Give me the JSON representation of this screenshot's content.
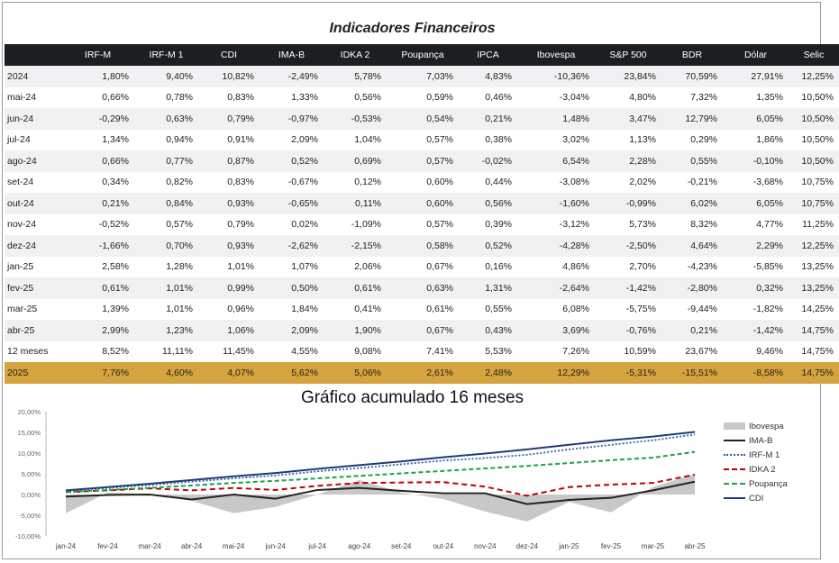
{
  "table": {
    "title": "Indicadores Financeiros",
    "columns": [
      "",
      "IRF-M",
      "IRF-M 1",
      "CDI",
      "IMA-B",
      "IDKA 2",
      "Poupança",
      "IPCA",
      "Ibovespa",
      "S&P 500",
      "BDR",
      "Dólar",
      "Selic"
    ],
    "rows": [
      [
        "2024",
        "1,80%",
        "9,40%",
        "10,82%",
        "-2,49%",
        "5,78%",
        "7,03%",
        "4,83%",
        "-10,36%",
        "23,84%",
        "70,59%",
        "27,91%",
        "12,25%"
      ],
      [
        "mai-24",
        "0,66%",
        "0,78%",
        "0,83%",
        "1,33%",
        "0,56%",
        "0,59%",
        "0,46%",
        "-3,04%",
        "4,80%",
        "7,32%",
        "1,35%",
        "10,50%"
      ],
      [
        "jun-24",
        "-0,29%",
        "0,63%",
        "0,79%",
        "-0,97%",
        "-0,53%",
        "0,54%",
        "0,21%",
        "1,48%",
        "3,47%",
        "12,79%",
        "6,05%",
        "10,50%"
      ],
      [
        "jul-24",
        "1,34%",
        "0,94%",
        "0,91%",
        "2,09%",
        "1,04%",
        "0,57%",
        "0,38%",
        "3,02%",
        "1,13%",
        "0,29%",
        "1,86%",
        "10,50%"
      ],
      [
        "ago-24",
        "0,66%",
        "0,77%",
        "0,87%",
        "0,52%",
        "0,69%",
        "0,57%",
        "-0,02%",
        "6,54%",
        "2,28%",
        "0,55%",
        "-0,10%",
        "10,50%"
      ],
      [
        "set-24",
        "0,34%",
        "0,82%",
        "0,83%",
        "-0,67%",
        "0,12%",
        "0,60%",
        "0,44%",
        "-3,08%",
        "2,02%",
        "-0,21%",
        "-3,68%",
        "10,75%"
      ],
      [
        "out-24",
        "0,21%",
        "0,84%",
        "0,93%",
        "-0,65%",
        "0,11%",
        "0,60%",
        "0,56%",
        "-1,60%",
        "-0,99%",
        "6,02%",
        "6,05%",
        "10,75%"
      ],
      [
        "nov-24",
        "-0,52%",
        "0,57%",
        "0,79%",
        "0,02%",
        "-1,09%",
        "0,57%",
        "0,39%",
        "-3,12%",
        "5,73%",
        "8,32%",
        "4,77%",
        "11,25%"
      ],
      [
        "dez-24",
        "-1,66%",
        "0,70%",
        "0,93%",
        "-2,62%",
        "-2,15%",
        "0,58%",
        "0,52%",
        "-4,28%",
        "-2,50%",
        "4,64%",
        "2,29%",
        "12,25%"
      ],
      [
        "jan-25",
        "2,58%",
        "1,28%",
        "1,01%",
        "1,07%",
        "2,06%",
        "0,67%",
        "0,16%",
        "4,86%",
        "2,70%",
        "-4,23%",
        "-5,85%",
        "13,25%"
      ],
      [
        "fev-25",
        "0,61%",
        "1,01%",
        "0,99%",
        "0,50%",
        "0,61%",
        "0,63%",
        "1,31%",
        "-2,64%",
        "-1,42%",
        "-2,80%",
        "0,32%",
        "13,25%"
      ],
      [
        "mar-25",
        "1,39%",
        "1,01%",
        "0,96%",
        "1,84%",
        "0,41%",
        "0,61%",
        "0,55%",
        "6,08%",
        "-5,75%",
        "-9,44%",
        "-1,82%",
        "14,25%"
      ],
      [
        "abr-25",
        "2,99%",
        "1,23%",
        "1,06%",
        "2,09%",
        "1,90%",
        "0,67%",
        "0,43%",
        "3,69%",
        "-0,76%",
        "0,21%",
        "-1,42%",
        "14,75%"
      ],
      [
        "12 meses",
        "8,52%",
        "11,11%",
        "11,45%",
        "4,55%",
        "9,08%",
        "7,41%",
        "5,53%",
        "7,26%",
        "10,59%",
        "23,67%",
        "9,46%",
        "14,75%"
      ]
    ],
    "total_row": [
      "2025",
      "7,76%",
      "4,60%",
      "4,07%",
      "5,62%",
      "5,06%",
      "2,61%",
      "2,48%",
      "12,29%",
      "-5,31%",
      "-15,51%",
      "-8,58%",
      "14,75%"
    ],
    "total_color": "#d6a43f",
    "header_color": "#1c1f22"
  },
  "chart_data": {
    "type": "line",
    "title": "Gráfico acumulado 16 meses",
    "categories": [
      "jan-24",
      "fev-24",
      "mar-24",
      "abr-24",
      "mai-24",
      "jun-24",
      "jul-24",
      "ago-24",
      "set-24",
      "out-24",
      "nov-24",
      "dez-24",
      "jan-25",
      "fev-25",
      "mar-25",
      "abr-25"
    ],
    "ylim": [
      -10,
      20
    ],
    "yticks": [
      "20,00%",
      "15,00%",
      "10,00%",
      "5,00%",
      "0,00%",
      "-5,00%",
      "-10,00%"
    ],
    "legend_position": "right",
    "series": [
      {
        "name": "Ibovespa",
        "style": "area",
        "color": "#c8c8c8",
        "values": [
          -4.5,
          0.5,
          0.2,
          -1.5,
          -4.5,
          -3.0,
          0.0,
          3.5,
          0.5,
          -1.1,
          -4.1,
          -6.5,
          -1.8,
          -4.3,
          1.8,
          5.0
        ]
      },
      {
        "name": "IMA-B",
        "style": "line",
        "color": "#222222",
        "values": [
          -0.5,
          -0.1,
          0.0,
          -1.2,
          0.0,
          -1.0,
          1.1,
          1.6,
          0.9,
          0.3,
          0.3,
          -2.3,
          -1.3,
          -0.8,
          1.0,
          3.1
        ]
      },
      {
        "name": "IRF-M 1",
        "style": "dot",
        "color": "#3a5fa8",
        "values": [
          0.9,
          1.6,
          2.3,
          3.1,
          3.9,
          4.6,
          5.6,
          6.4,
          7.3,
          8.2,
          8.8,
          9.6,
          10.9,
          12.0,
          13.1,
          14.5
        ]
      },
      {
        "name": "IDKA 2",
        "style": "dashred",
        "color": "#c00000",
        "values": [
          0.6,
          1.0,
          1.5,
          1.0,
          1.6,
          1.1,
          2.1,
          2.8,
          2.9,
          3.0,
          1.9,
          -0.3,
          1.8,
          2.4,
          2.8,
          4.8
        ]
      },
      {
        "name": "Poupança",
        "style": "dashgreen",
        "color": "#18a34a",
        "values": [
          0.6,
          1.1,
          1.6,
          2.2,
          2.8,
          3.3,
          3.9,
          4.5,
          5.1,
          5.7,
          6.3,
          6.9,
          7.6,
          8.3,
          8.9,
          10.3
        ]
      },
      {
        "name": "CDI",
        "style": "lineblue",
        "color": "#1f3b7a",
        "values": [
          1.0,
          1.8,
          2.6,
          3.5,
          4.4,
          5.2,
          6.2,
          7.1,
          8.0,
          9.0,
          9.9,
          10.9,
          12.0,
          13.1,
          14.0,
          15.1
        ]
      }
    ]
  }
}
